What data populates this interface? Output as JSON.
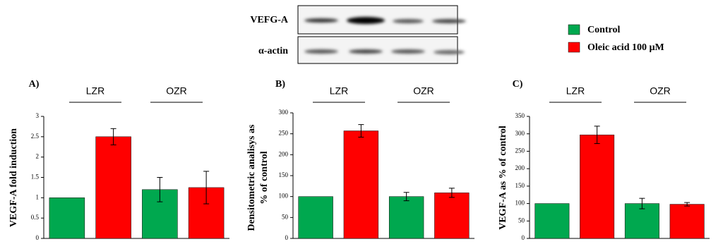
{
  "blot": {
    "labels": [
      "VEFG-A",
      "α-actin"
    ]
  },
  "chart_data": [
    {
      "type": "bar",
      "panel": "A)",
      "ylabel": [
        "VEGF-A fold induction"
      ],
      "groups": [
        "LZR",
        "OZR"
      ],
      "ylim": [
        0,
        3
      ],
      "yticks": [
        0,
        0.5,
        1,
        1.5,
        2,
        2.5,
        3
      ],
      "series": [
        {
          "name": "Control",
          "color": "#00a84f",
          "values": [
            1,
            1.2
          ],
          "errors": [
            null,
            0.3
          ]
        },
        {
          "name": "Oleic acid 100 µM",
          "color": "#ff0000",
          "values": [
            2.5,
            1.25
          ],
          "errors": [
            0.2,
            0.4
          ]
        }
      ]
    },
    {
      "type": "bar",
      "panel": "B)",
      "ylabel": [
        "Densitometric analisys as",
        "% of control"
      ],
      "groups": [
        "LZR",
        "OZR"
      ],
      "ylim": [
        0,
        300
      ],
      "yticks": [
        0,
        50,
        100,
        150,
        200,
        250,
        300
      ],
      "series": [
        {
          "name": "Control",
          "color": "#00a84f",
          "values": [
            100,
            100
          ],
          "errors": [
            null,
            10
          ]
        },
        {
          "name": "Oleic acid 100 µM",
          "color": "#ff0000",
          "values": [
            257,
            109
          ],
          "errors": [
            15,
            11
          ]
        }
      ]
    },
    {
      "type": "bar",
      "panel": "C)",
      "ylabel": [
        "VEGF-A as % of control"
      ],
      "groups": [
        "LZR",
        "OZR"
      ],
      "ylim": [
        0,
        350
      ],
      "yticks": [
        0,
        50,
        100,
        150,
        200,
        250,
        300,
        350
      ],
      "series": [
        {
          "name": "Control",
          "color": "#00a84f",
          "values": [
            100,
            100
          ],
          "errors": [
            null,
            15
          ]
        },
        {
          "name": "Oleic acid 100 µM",
          "color": "#ff0000",
          "values": [
            297,
            98
          ],
          "errors": [
            25,
            5
          ]
        }
      ]
    }
  ]
}
